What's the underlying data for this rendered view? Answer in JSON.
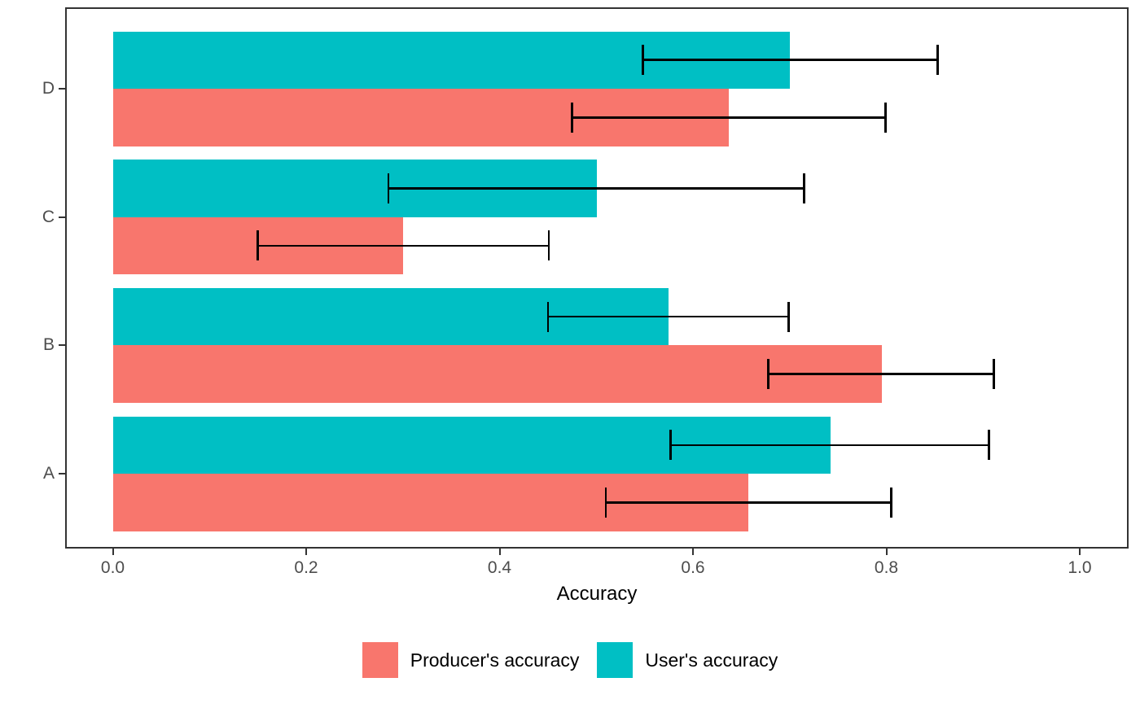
{
  "chart_data": {
    "type": "bar",
    "orientation": "horizontal",
    "title": "",
    "xlabel": "Accuracy",
    "ylabel": "",
    "grid": false,
    "legend_position": "bottom",
    "error_bars": true,
    "xlim": [
      0,
      1.05
    ],
    "x_ticks": [
      0.0,
      0.2,
      0.4,
      0.6,
      0.8,
      1.0
    ],
    "x_tick_labels": [
      "0.0",
      "0.2",
      "0.4",
      "0.6",
      "0.8",
      "1.0"
    ],
    "categories_top_to_bottom": [
      "D",
      "C",
      "B",
      "A"
    ],
    "series": [
      {
        "name": "Producer's accuracy",
        "color": "#F8766D",
        "values_by_category": {
          "A": 0.657,
          "B": 0.795,
          "C": 0.3,
          "D": 0.637
        },
        "error_low_by_category": {
          "A": 0.51,
          "B": 0.678,
          "C": 0.15,
          "D": 0.475
        },
        "error_high_by_category": {
          "A": 0.805,
          "B": 0.911,
          "C": 0.451,
          "D": 0.799
        }
      },
      {
        "name": "User's accuracy",
        "color": "#00BFC4",
        "values_by_category": {
          "A": 0.742,
          "B": 0.575,
          "C": 0.501,
          "D": 0.7
        },
        "error_low_by_category": {
          "A": 0.577,
          "B": 0.45,
          "C": 0.285,
          "D": 0.548
        },
        "error_high_by_category": {
          "A": 0.906,
          "B": 0.699,
          "C": 0.715,
          "D": 0.853
        }
      }
    ],
    "colors": {
      "axis_text": "#4D4D4D",
      "axis_title": "#000000",
      "panel_border": "#333333",
      "error_bar": "#000000",
      "background": "#FFFFFF"
    }
  }
}
